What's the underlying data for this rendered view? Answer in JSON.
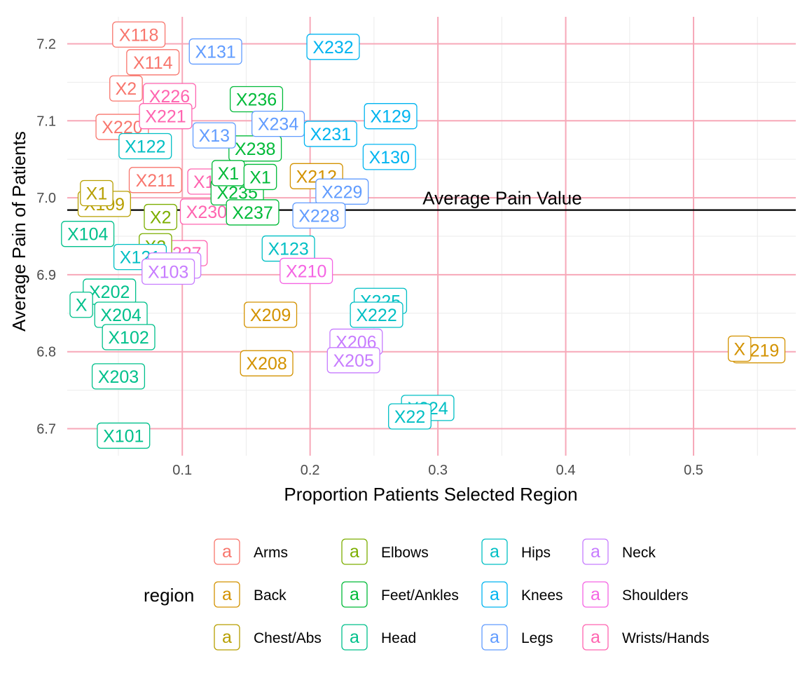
{
  "chart_data": {
    "type": "scatter",
    "title": "",
    "xlabel": "Proportion Patients Selected Region",
    "ylabel": "Average Pain of Patients",
    "xlim": [
      0.01,
      0.58
    ],
    "ylim": [
      6.665,
      7.235
    ],
    "x_ticks": [
      0.1,
      0.2,
      0.3,
      0.4,
      0.5
    ],
    "x_tick_labels": [
      "0.1",
      "0.2",
      "0.3",
      "0.4",
      "0.5"
    ],
    "y_ticks": [
      6.7,
      6.8,
      6.9,
      7.0,
      7.1,
      7.2
    ],
    "y_tick_labels": [
      "6.7",
      "6.8",
      "6.9",
      "7.0",
      "7.1",
      "7.2"
    ],
    "grid": true,
    "reference_line": {
      "y": 6.984,
      "label": "Average Pain Value"
    },
    "legend_title": "region",
    "legend_position": "bottom",
    "regions": [
      {
        "name": "Arms",
        "color": "#F8766D"
      },
      {
        "name": "Back",
        "color": "#D39200"
      },
      {
        "name": "Chest/Abs",
        "color": "#93AA00"
      },
      {
        "name": "Elbows",
        "color": "#00BA38"
      },
      {
        "name": "Feet/Ankles",
        "color": "#00C19F"
      },
      {
        "name": "Head",
        "color": "#00B9E3"
      },
      {
        "name": "Hips",
        "color": "#619CFF"
      },
      {
        "name": "Knees",
        "color": "#DB72FB"
      },
      {
        "name": "Legs",
        "color": "#FF61C3"
      },
      {
        "name": "Neck",
        "color": "#F8766D"
      },
      {
        "name": "Shoulders",
        "color": "#D39200"
      },
      {
        "name": "Wrists/Hands",
        "color": "#93AA00"
      }
    ],
    "legend_layout": [
      {
        "name": "Arms",
        "color": "#F8766D"
      },
      {
        "name": "Back",
        "color": "#D39200"
      },
      {
        "name": "Chest/Abs",
        "color": "#B79F00"
      },
      {
        "name": "Elbows",
        "color": "#7CAE00"
      },
      {
        "name": "Feet/Ankles",
        "color": "#00BA38"
      },
      {
        "name": "Head",
        "color": "#00C08B"
      },
      {
        "name": "Hips",
        "color": "#00BFC4"
      },
      {
        "name": "Knees",
        "color": "#00B4F0"
      },
      {
        "name": "Legs",
        "color": "#619CFF"
      },
      {
        "name": "Neck",
        "color": "#C77CFF"
      },
      {
        "name": "Shoulders",
        "color": "#F564E3"
      },
      {
        "name": "Wrists/Hands",
        "color": "#FF64B0"
      }
    ],
    "legend_key_glyph": "a",
    "points": [
      {
        "label": "X118",
        "region": "Arms",
        "x": 0.066,
        "y": 7.212
      },
      {
        "label": "X114",
        "region": "Arms",
        "x": 0.077,
        "y": 7.176
      },
      {
        "label": "X2",
        "region": "Arms",
        "x": 0.056,
        "y": 7.142
      },
      {
        "label": "X220",
        "region": "Arms",
        "x": 0.053,
        "y": 7.092
      },
      {
        "label": "X211",
        "region": "Arms",
        "x": 0.079,
        "y": 7.023
      },
      {
        "label": "X122",
        "region": "Hips",
        "x": 0.071,
        "y": 7.067
      },
      {
        "label": "X226",
        "region": "Wrists/Hands",
        "x": 0.09,
        "y": 7.132
      },
      {
        "label": "X221",
        "region": "Wrists/Hands",
        "x": 0.087,
        "y": 7.106
      },
      {
        "label": "X230",
        "region": "Wrists/Hands",
        "x": 0.119,
        "y": 6.982
      },
      {
        "label": "X227",
        "region": "Wrists/Hands",
        "x": 0.099,
        "y": 6.928
      },
      {
        "label": "X1",
        "region": "Wrists/Hands",
        "x": 0.117,
        "y": 7.021
      },
      {
        "label": "X109",
        "region": "Chest/Abs",
        "x": 0.039,
        "y": 6.992
      },
      {
        "label": "X1",
        "region": "Chest/Abs",
        "x": 0.033,
        "y": 7.006
      },
      {
        "label": "X2",
        "region": "Elbows",
        "x": 0.083,
        "y": 6.975
      },
      {
        "label": "X2",
        "region": "Elbows",
        "x": 0.079,
        "y": 6.937
      },
      {
        "label": "X104",
        "region": "Head",
        "x": 0.026,
        "y": 6.953
      },
      {
        "label": "X121",
        "region": "Hips",
        "x": 0.067,
        "y": 6.923
      },
      {
        "label": "X106",
        "region": "Neck",
        "x": 0.094,
        "y": 6.912
      },
      {
        "label": "X103",
        "region": "Neck",
        "x": 0.089,
        "y": 6.904
      },
      {
        "label": "X202",
        "region": "Head",
        "x": 0.043,
        "y": 6.878
      },
      {
        "label": "X",
        "region": "Head",
        "x": 0.021,
        "y": 6.861
      },
      {
        "label": "X204",
        "region": "Head",
        "x": 0.052,
        "y": 6.848
      },
      {
        "label": "X102",
        "region": "Head",
        "x": 0.058,
        "y": 6.819
      },
      {
        "label": "X203",
        "region": "Head",
        "x": 0.05,
        "y": 6.768
      },
      {
        "label": "X101",
        "region": "Head",
        "x": 0.054,
        "y": 6.691
      },
      {
        "label": "X131",
        "region": "Legs",
        "x": 0.126,
        "y": 7.19
      },
      {
        "label": "X232",
        "region": "Knees",
        "x": 0.218,
        "y": 7.196
      },
      {
        "label": "X236",
        "region": "Feet/Ankles",
        "x": 0.158,
        "y": 7.128
      },
      {
        "label": "X238",
        "region": "Feet/Ankles",
        "x": 0.157,
        "y": 7.064
      },
      {
        "label": "X235",
        "region": "Feet/Ankles",
        "x": 0.143,
        "y": 7.007
      },
      {
        "label": "X237",
        "region": "Feet/Ankles",
        "x": 0.155,
        "y": 6.981
      },
      {
        "label": "X1",
        "region": "Feet/Ankles",
        "x": 0.136,
        "y": 7.032
      },
      {
        "label": "X1",
        "region": "Feet/Ankles",
        "x": 0.161,
        "y": 7.027
      },
      {
        "label": "X13",
        "region": "Legs",
        "x": 0.125,
        "y": 7.081
      },
      {
        "label": "X234",
        "region": "Legs",
        "x": 0.175,
        "y": 7.096
      },
      {
        "label": "X231",
        "region": "Knees",
        "x": 0.216,
        "y": 7.083
      },
      {
        "label": "X129",
        "region": "Knees",
        "x": 0.263,
        "y": 7.106
      },
      {
        "label": "X130",
        "region": "Knees",
        "x": 0.262,
        "y": 7.053
      },
      {
        "label": "X212",
        "region": "Back",
        "x": 0.205,
        "y": 7.028
      },
      {
        "label": "X229",
        "region": "Legs",
        "x": 0.225,
        "y": 7.008
      },
      {
        "label": "X228",
        "region": "Legs",
        "x": 0.207,
        "y": 6.977
      },
      {
        "label": "X123",
        "region": "Hips",
        "x": 0.183,
        "y": 6.934
      },
      {
        "label": "X210",
        "region": "Shoulders",
        "x": 0.197,
        "y": 6.905
      },
      {
        "label": "X209",
        "region": "Back",
        "x": 0.169,
        "y": 6.848
      },
      {
        "label": "X208",
        "region": "Back",
        "x": 0.166,
        "y": 6.785
      },
      {
        "label": "X225",
        "region": "Hips",
        "x": 0.255,
        "y": 6.866
      },
      {
        "label": "X222",
        "region": "Hips",
        "x": 0.252,
        "y": 6.848
      },
      {
        "label": "X206",
        "region": "Neck",
        "x": 0.236,
        "y": 6.813
      },
      {
        "label": "X205",
        "region": "Neck",
        "x": 0.234,
        "y": 6.789
      },
      {
        "label": "X224",
        "region": "Hips",
        "x": 0.292,
        "y": 6.727
      },
      {
        "label": "X22",
        "region": "Hips",
        "x": 0.278,
        "y": 6.716
      },
      {
        "label": "X219",
        "region": "Back",
        "x": 0.551,
        "y": 6.802
      },
      {
        "label": "X",
        "region": "Back",
        "x": 0.536,
        "y": 6.804
      }
    ]
  }
}
